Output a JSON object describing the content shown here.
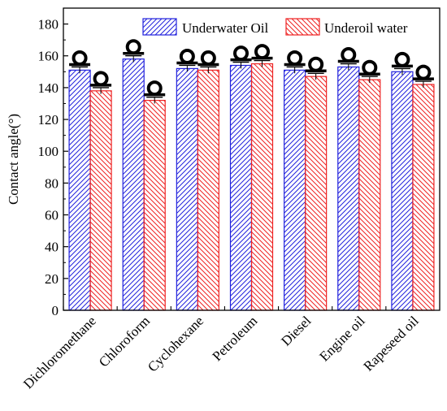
{
  "chart_data": {
    "type": "bar",
    "title": "",
    "xlabel": "",
    "ylabel": "Contact angle(°)",
    "ylim": [
      0,
      190
    ],
    "yticks": [
      0,
      20,
      40,
      60,
      80,
      100,
      120,
      140,
      160,
      180
    ],
    "categories": [
      "Dichloromethane",
      "Chloroform",
      "Cyclohexane",
      "Petroleum",
      "Diesel",
      "Engine oil",
      "Rapeseed oil"
    ],
    "series": [
      {
        "name": "Underwater Oil",
        "color": "#2222dd",
        "pattern": "diagonal-hatch-forward",
        "values": [
          151,
          158,
          152,
          154,
          151,
          153,
          150
        ],
        "errors": [
          2,
          2,
          2,
          2,
          2,
          2,
          2
        ]
      },
      {
        "name": "Underoil water",
        "color": "#ee2222",
        "pattern": "diagonal-hatch-backward",
        "values": [
          138,
          132,
          151,
          155,
          147,
          145,
          142
        ],
        "errors": [
          2,
          2,
          2,
          2,
          2,
          2,
          2
        ]
      }
    ],
    "annotations": "droplet-on-surface icon above each bar",
    "legend_position": "top-center",
    "grid": false,
    "frame": "full box with inward ticks"
  }
}
